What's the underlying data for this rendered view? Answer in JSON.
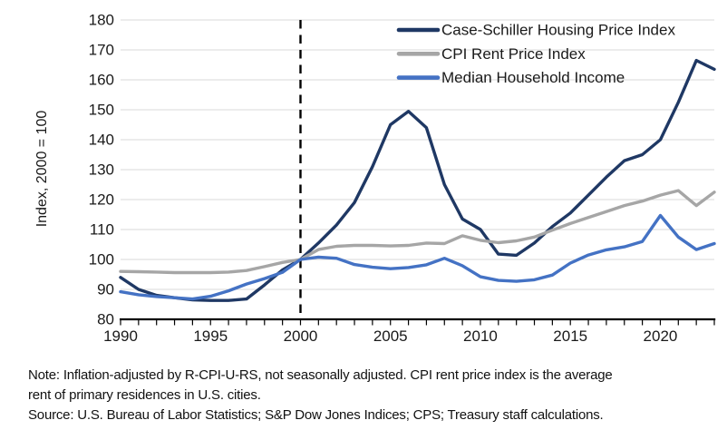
{
  "chart_data": {
    "type": "line",
    "title": "",
    "xlabel": "",
    "ylabel": "Index, 2000 = 100",
    "x": [
      1990,
      1991,
      1992,
      1993,
      1994,
      1995,
      1996,
      1997,
      1998,
      1999,
      2000,
      2001,
      2002,
      2003,
      2004,
      2005,
      2006,
      2007,
      2008,
      2009,
      2010,
      2011,
      2012,
      2013,
      2014,
      2015,
      2016,
      2017,
      2018,
      2019,
      2020,
      2021,
      2022,
      2023
    ],
    "series": [
      {
        "name": "Case-Schiller Housing Price Index",
        "color": "#1f3864",
        "values": [
          94,
          90,
          88,
          87.2,
          86.5,
          86.3,
          86.3,
          86.8,
          91.5,
          96.5,
          100,
          105.5,
          111.5,
          119,
          131,
          145,
          149.5,
          144,
          125,
          113.5,
          110,
          101.8,
          101.4,
          105.5,
          111,
          115.5,
          121.5,
          127.5,
          133,
          135,
          140,
          152.5,
          166.5,
          163.5
        ]
      },
      {
        "name": "CPI Rent Price Index",
        "color": "#a6a6a6",
        "values": [
          96,
          95.9,
          95.8,
          95.6,
          95.6,
          95.6,
          95.8,
          96.3,
          97.6,
          99,
          100,
          103.3,
          104.4,
          104.7,
          104.7,
          104.5,
          104.7,
          105.5,
          105.3,
          107.9,
          106.4,
          105.6,
          106.2,
          107.5,
          109.8,
          112,
          114,
          116,
          118,
          119.5,
          121.5,
          123,
          118,
          122.5
        ]
      },
      {
        "name": "Median Household Income",
        "color": "#4472c4",
        "values": [
          89.2,
          88.2,
          87.6,
          87.2,
          86.8,
          87.7,
          89.5,
          91.8,
          93.6,
          95.7,
          100,
          100.8,
          100.4,
          98.3,
          97.4,
          96.9,
          97.3,
          98.2,
          100.4,
          97.9,
          94.2,
          93,
          92.7,
          93.2,
          94.8,
          98.8,
          101.5,
          103.2,
          104.2,
          106,
          114.7,
          107.5,
          103.3,
          105.3
        ]
      }
    ],
    "xlim": [
      1990,
      2023
    ],
    "ylim": [
      80,
      180
    ],
    "xticks": [
      1990,
      1995,
      2000,
      2005,
      2010,
      2015,
      2020
    ],
    "yticks": [
      80,
      90,
      100,
      110,
      120,
      130,
      140,
      150,
      160,
      170,
      180
    ],
    "reference_line_x": 2000,
    "grid": "horizontal",
    "legend_position": "top-right",
    "gridline_color": "#d9d9d9",
    "axis_color": "#000000",
    "text_color": "#1a1a1a"
  },
  "notes": {
    "note_line1": "Note: Inflation-adjusted by R-CPI-U-RS, not seasonally adjusted. CPI rent price index is the average",
    "note_line2": "rent of primary residences in U.S. cities.",
    "source_line": "Source: U.S. Bureau of Labor Statistics; S&P Dow Jones Indices; CPS; Treasury staff calculations."
  }
}
